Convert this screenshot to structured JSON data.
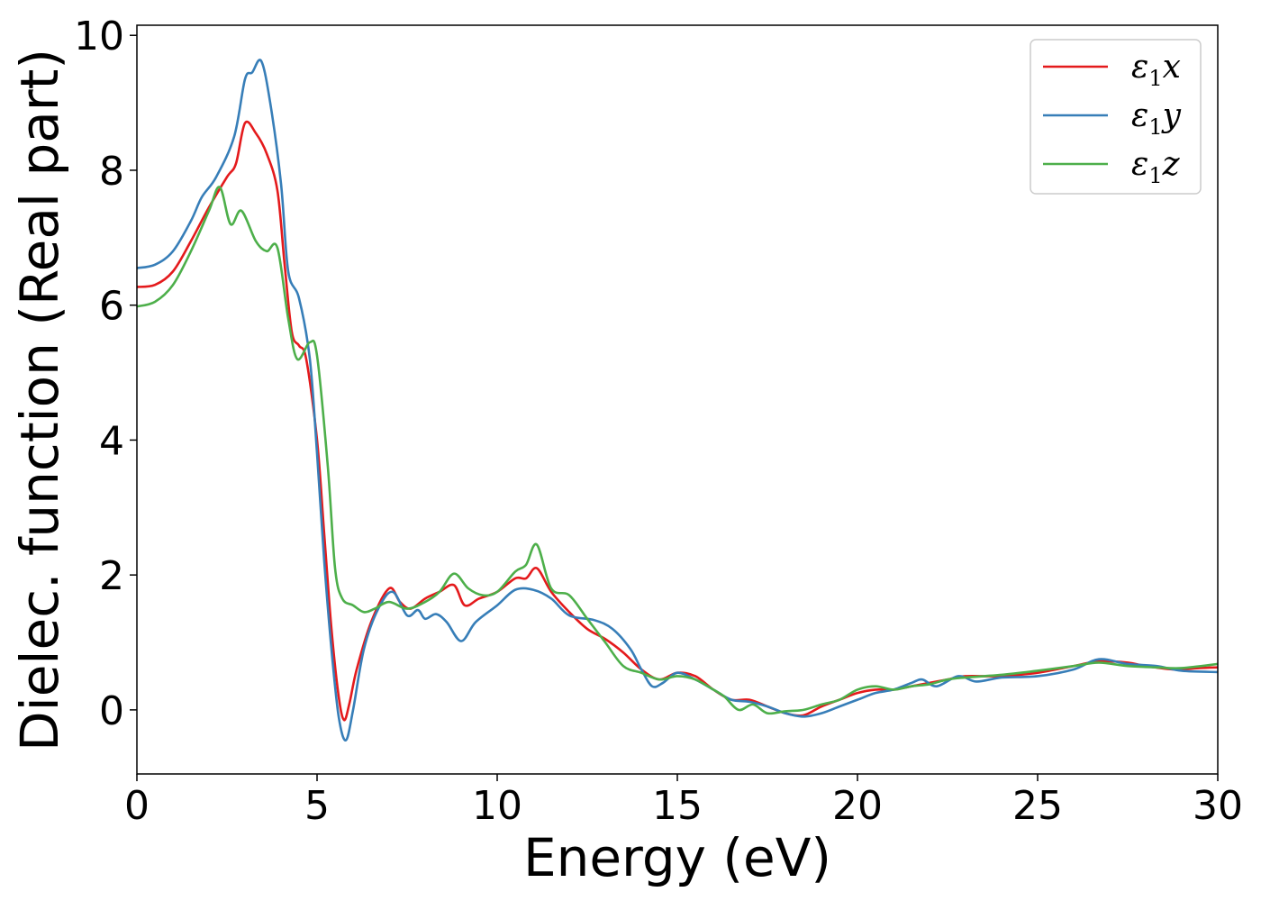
{
  "chart_data": {
    "type": "line",
    "xlabel": "Energy (eV)",
    "ylabel": "Dielec. function (Real part)",
    "xlim": [
      0,
      30
    ],
    "ylim": [
      -0.95,
      10.15
    ],
    "xticks": [
      0,
      5,
      10,
      15,
      20,
      25,
      30
    ],
    "yticks": [
      0,
      2,
      4,
      6,
      8,
      10
    ],
    "grid": false,
    "legend_position": "top-right",
    "series": [
      {
        "name": "ε₁x",
        "legend_base": "ε",
        "legend_sub": "1",
        "legend_var": "x",
        "color": "#e41a1c",
        "points": [
          [
            0,
            6.27
          ],
          [
            0.5,
            6.3
          ],
          [
            1,
            6.5
          ],
          [
            1.5,
            6.95
          ],
          [
            2,
            7.45
          ],
          [
            2.5,
            7.9
          ],
          [
            2.75,
            8.1
          ],
          [
            3.0,
            8.7
          ],
          [
            3.3,
            8.55
          ],
          [
            3.6,
            8.25
          ],
          [
            3.9,
            7.7
          ],
          [
            4.1,
            6.6
          ],
          [
            4.3,
            5.6
          ],
          [
            4.5,
            5.4
          ],
          [
            4.7,
            5.2
          ],
          [
            5.0,
            4.0
          ],
          [
            5.2,
            2.6
          ],
          [
            5.4,
            1.2
          ],
          [
            5.6,
            0.2
          ],
          [
            5.75,
            -0.15
          ],
          [
            5.9,
            0.1
          ],
          [
            6.1,
            0.6
          ],
          [
            6.5,
            1.3
          ],
          [
            7.0,
            1.8
          ],
          [
            7.3,
            1.6
          ],
          [
            7.6,
            1.5
          ],
          [
            8.0,
            1.65
          ],
          [
            8.4,
            1.75
          ],
          [
            8.8,
            1.85
          ],
          [
            9.1,
            1.55
          ],
          [
            9.5,
            1.65
          ],
          [
            10.0,
            1.75
          ],
          [
            10.5,
            1.95
          ],
          [
            10.8,
            1.95
          ],
          [
            11.1,
            2.1
          ],
          [
            11.5,
            1.75
          ],
          [
            12.0,
            1.45
          ],
          [
            12.5,
            1.2
          ],
          [
            13.0,
            1.05
          ],
          [
            13.5,
            0.85
          ],
          [
            14.0,
            0.6
          ],
          [
            14.5,
            0.45
          ],
          [
            15.0,
            0.55
          ],
          [
            15.5,
            0.5
          ],
          [
            16.0,
            0.3
          ],
          [
            16.5,
            0.15
          ],
          [
            17.0,
            0.15
          ],
          [
            17.5,
            0.05
          ],
          [
            18.0,
            -0.05
          ],
          [
            18.5,
            -0.08
          ],
          [
            19.0,
            0.05
          ],
          [
            19.5,
            0.15
          ],
          [
            20.0,
            0.25
          ],
          [
            20.5,
            0.3
          ],
          [
            21.0,
            0.3
          ],
          [
            21.5,
            0.35
          ],
          [
            22.0,
            0.4
          ],
          [
            22.5,
            0.45
          ],
          [
            23.0,
            0.5
          ],
          [
            24.0,
            0.5
          ],
          [
            25.0,
            0.55
          ],
          [
            26.0,
            0.65
          ],
          [
            26.7,
            0.72
          ],
          [
            27.5,
            0.7
          ],
          [
            28.0,
            0.65
          ],
          [
            28.8,
            0.6
          ],
          [
            29.5,
            0.62
          ],
          [
            30.0,
            0.63
          ]
        ]
      },
      {
        "name": "ε₁y",
        "legend_base": "ε",
        "legend_sub": "1",
        "legend_var": "y",
        "color": "#377eb8",
        "points": [
          [
            0,
            6.55
          ],
          [
            0.5,
            6.6
          ],
          [
            1,
            6.8
          ],
          [
            1.5,
            7.25
          ],
          [
            1.8,
            7.6
          ],
          [
            2.2,
            7.9
          ],
          [
            2.7,
            8.5
          ],
          [
            3.0,
            9.35
          ],
          [
            3.2,
            9.45
          ],
          [
            3.45,
            9.62
          ],
          [
            3.7,
            9.0
          ],
          [
            4.0,
            7.8
          ],
          [
            4.2,
            6.5
          ],
          [
            4.5,
            6.1
          ],
          [
            4.8,
            5.2
          ],
          [
            5.0,
            3.8
          ],
          [
            5.2,
            2.2
          ],
          [
            5.4,
            0.9
          ],
          [
            5.6,
            -0.1
          ],
          [
            5.8,
            -0.45
          ],
          [
            6.0,
            0.0
          ],
          [
            6.3,
            0.9
          ],
          [
            6.7,
            1.5
          ],
          [
            7.1,
            1.75
          ],
          [
            7.5,
            1.4
          ],
          [
            7.8,
            1.48
          ],
          [
            8.0,
            1.35
          ],
          [
            8.3,
            1.42
          ],
          [
            8.6,
            1.3
          ],
          [
            9.0,
            1.02
          ],
          [
            9.4,
            1.3
          ],
          [
            10.0,
            1.55
          ],
          [
            10.5,
            1.78
          ],
          [
            11.0,
            1.78
          ],
          [
            11.5,
            1.65
          ],
          [
            12.0,
            1.4
          ],
          [
            12.7,
            1.33
          ],
          [
            13.2,
            1.2
          ],
          [
            13.7,
            0.9
          ],
          [
            14.0,
            0.6
          ],
          [
            14.3,
            0.35
          ],
          [
            14.6,
            0.4
          ],
          [
            15.0,
            0.55
          ],
          [
            15.5,
            0.45
          ],
          [
            16.0,
            0.3
          ],
          [
            16.5,
            0.15
          ],
          [
            17.0,
            0.12
          ],
          [
            17.5,
            0.05
          ],
          [
            18.0,
            -0.05
          ],
          [
            18.5,
            -0.1
          ],
          [
            19.0,
            -0.05
          ],
          [
            19.5,
            0.05
          ],
          [
            20.0,
            0.15
          ],
          [
            20.5,
            0.25
          ],
          [
            21.0,
            0.3
          ],
          [
            21.5,
            0.4
          ],
          [
            21.8,
            0.45
          ],
          [
            22.2,
            0.35
          ],
          [
            22.8,
            0.5
          ],
          [
            23.3,
            0.42
          ],
          [
            24.0,
            0.48
          ],
          [
            25.0,
            0.5
          ],
          [
            26.0,
            0.6
          ],
          [
            26.7,
            0.75
          ],
          [
            27.5,
            0.68
          ],
          [
            28.3,
            0.65
          ],
          [
            29.0,
            0.58
          ],
          [
            30.0,
            0.56
          ]
        ]
      },
      {
        "name": "ε₁z",
        "legend_base": "ε",
        "legend_sub": "1",
        "legend_var": "z",
        "color": "#4daf4a",
        "points": [
          [
            0,
            5.98
          ],
          [
            0.5,
            6.05
          ],
          [
            1,
            6.3
          ],
          [
            1.5,
            6.8
          ],
          [
            2.0,
            7.4
          ],
          [
            2.3,
            7.75
          ],
          [
            2.6,
            7.2
          ],
          [
            2.9,
            7.4
          ],
          [
            3.3,
            6.95
          ],
          [
            3.6,
            6.8
          ],
          [
            3.9,
            6.85
          ],
          [
            4.2,
            5.8
          ],
          [
            4.45,
            5.2
          ],
          [
            4.8,
            5.45
          ],
          [
            5.0,
            5.25
          ],
          [
            5.3,
            3.6
          ],
          [
            5.5,
            2.1
          ],
          [
            5.7,
            1.65
          ],
          [
            6.0,
            1.55
          ],
          [
            6.3,
            1.45
          ],
          [
            6.6,
            1.5
          ],
          [
            7.0,
            1.6
          ],
          [
            7.5,
            1.5
          ],
          [
            8.0,
            1.6
          ],
          [
            8.4,
            1.75
          ],
          [
            8.8,
            2.02
          ],
          [
            9.2,
            1.8
          ],
          [
            9.6,
            1.7
          ],
          [
            10.0,
            1.75
          ],
          [
            10.5,
            2.05
          ],
          [
            10.8,
            2.15
          ],
          [
            11.1,
            2.45
          ],
          [
            11.5,
            1.8
          ],
          [
            12.0,
            1.7
          ],
          [
            12.5,
            1.35
          ],
          [
            13.0,
            1.0
          ],
          [
            13.5,
            0.65
          ],
          [
            14.0,
            0.55
          ],
          [
            14.5,
            0.45
          ],
          [
            15.0,
            0.5
          ],
          [
            15.5,
            0.45
          ],
          [
            16.0,
            0.3
          ],
          [
            16.3,
            0.2
          ],
          [
            16.7,
            0.0
          ],
          [
            17.1,
            0.08
          ],
          [
            17.5,
            -0.05
          ],
          [
            18.0,
            -0.02
          ],
          [
            18.5,
            0.0
          ],
          [
            19.0,
            0.08
          ],
          [
            19.5,
            0.15
          ],
          [
            20.0,
            0.3
          ],
          [
            20.5,
            0.35
          ],
          [
            21.0,
            0.3
          ],
          [
            21.5,
            0.35
          ],
          [
            22.0,
            0.38
          ],
          [
            22.5,
            0.45
          ],
          [
            23.0,
            0.48
          ],
          [
            24.0,
            0.52
          ],
          [
            25.0,
            0.58
          ],
          [
            26.0,
            0.65
          ],
          [
            26.7,
            0.7
          ],
          [
            27.5,
            0.65
          ],
          [
            28.3,
            0.63
          ],
          [
            29.0,
            0.62
          ],
          [
            30.0,
            0.68
          ]
        ]
      }
    ]
  }
}
